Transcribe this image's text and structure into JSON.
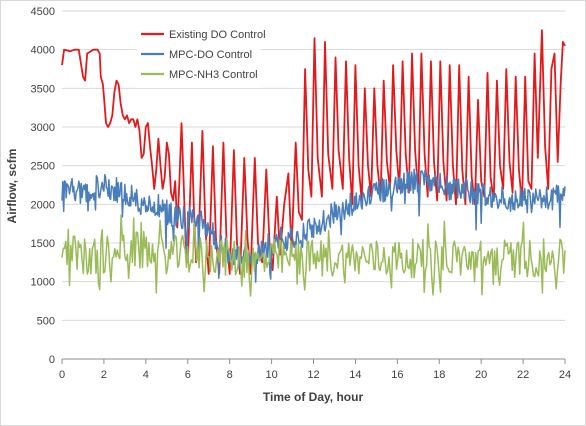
{
  "chart_data": {
    "type": "line",
    "title": "",
    "xlabel": "Time of Day, hour",
    "ylabel": "Airflow, scfm",
    "xlim": [
      0,
      24
    ],
    "ylim": [
      0,
      4500
    ],
    "x_ticks": [
      "0",
      "2",
      "4",
      "6",
      "8",
      "10",
      "12",
      "14",
      "16",
      "18",
      "20",
      "22",
      "24"
    ],
    "y_ticks": [
      "0",
      "500",
      "1000",
      "1500",
      "2000",
      "2500",
      "3000",
      "3500",
      "4000",
      "4500"
    ],
    "grid": "horizontal",
    "legend_position": "top-left",
    "series": [
      {
        "name": "Existing DO Control",
        "color": "#e31a1c",
        "points": [
          [
            0,
            3800
          ],
          [
            0.1,
            4000
          ],
          [
            0.4,
            3980
          ],
          [
            0.6,
            4000
          ],
          [
            0.8,
            4000
          ],
          [
            1.0,
            3650
          ],
          [
            1.1,
            3600
          ],
          [
            1.2,
            3950
          ],
          [
            1.5,
            4000
          ],
          [
            1.7,
            4000
          ],
          [
            1.8,
            3950
          ],
          [
            1.85,
            3650
          ],
          [
            1.95,
            3550
          ],
          [
            2.0,
            3400
          ],
          [
            2.1,
            3050
          ],
          [
            2.2,
            3000
          ],
          [
            2.3,
            3050
          ],
          [
            2.4,
            3150
          ],
          [
            2.5,
            3450
          ],
          [
            2.6,
            3600
          ],
          [
            2.7,
            3550
          ],
          [
            2.8,
            3300
          ],
          [
            2.9,
            3150
          ],
          [
            3.0,
            3100
          ],
          [
            3.1,
            3150
          ],
          [
            3.2,
            3050
          ],
          [
            3.3,
            3100
          ],
          [
            3.4,
            3100
          ],
          [
            3.5,
            3000
          ],
          [
            3.6,
            3100
          ],
          [
            3.7,
            2950
          ],
          [
            3.8,
            2600
          ],
          [
            3.9,
            2650
          ],
          [
            4.0,
            3000
          ],
          [
            4.1,
            3050
          ],
          [
            4.2,
            2750
          ],
          [
            4.3,
            2500
          ],
          [
            4.4,
            2200
          ],
          [
            4.5,
            2450
          ],
          [
            4.6,
            2850
          ],
          [
            4.7,
            2500
          ],
          [
            4.8,
            2200
          ],
          [
            4.9,
            2350
          ],
          [
            5.0,
            2800
          ],
          [
            5.1,
            2650
          ],
          [
            5.2,
            2150
          ],
          [
            5.3,
            2050
          ],
          [
            5.4,
            2300
          ],
          [
            5.5,
            1700
          ],
          [
            5.6,
            2300
          ],
          [
            5.7,
            3050
          ],
          [
            5.8,
            2300
          ],
          [
            5.9,
            1500
          ],
          [
            6.0,
            1250
          ],
          [
            6.1,
            2000
          ],
          [
            6.2,
            2800
          ],
          [
            6.3,
            1900
          ],
          [
            6.4,
            1250
          ],
          [
            6.5,
            1400
          ],
          [
            6.7,
            2950
          ],
          [
            6.85,
            1650
          ],
          [
            7.0,
            1100
          ],
          [
            7.2,
            2750
          ],
          [
            7.35,
            1550
          ],
          [
            7.5,
            1100
          ],
          [
            7.7,
            2800
          ],
          [
            7.85,
            1550
          ],
          [
            8.0,
            1100
          ],
          [
            8.2,
            2700
          ],
          [
            8.35,
            1500
          ],
          [
            8.5,
            1100
          ],
          [
            8.7,
            2600
          ],
          [
            8.85,
            1550
          ],
          [
            9.0,
            1100
          ],
          [
            9.2,
            2600
          ],
          [
            9.35,
            1500
          ],
          [
            9.55,
            1250
          ],
          [
            9.75,
            2450
          ],
          [
            9.9,
            1500
          ],
          [
            10.05,
            1150
          ],
          [
            10.25,
            2100
          ],
          [
            10.4,
            1350
          ],
          [
            10.6,
            2000
          ],
          [
            10.8,
            2400
          ],
          [
            10.95,
            1400
          ],
          [
            11.15,
            2800
          ],
          [
            11.3,
            1900
          ],
          [
            11.45,
            1800
          ],
          [
            11.6,
            3750
          ],
          [
            11.75,
            2450
          ],
          [
            11.9,
            2100
          ],
          [
            12.05,
            4150
          ],
          [
            12.2,
            2600
          ],
          [
            12.4,
            2100
          ],
          [
            12.55,
            4100
          ],
          [
            12.7,
            2650
          ],
          [
            12.9,
            2200
          ],
          [
            13.05,
            3900
          ],
          [
            13.2,
            2700
          ],
          [
            13.4,
            2200
          ],
          [
            13.55,
            3850
          ],
          [
            13.7,
            2600
          ],
          [
            13.85,
            2000
          ],
          [
            14.0,
            3800
          ],
          [
            14.15,
            2500
          ],
          [
            14.3,
            2050
          ],
          [
            14.45,
            3500
          ],
          [
            14.6,
            2500
          ],
          [
            14.75,
            2100
          ],
          [
            14.9,
            3500
          ],
          [
            15.05,
            2500
          ],
          [
            15.2,
            2100
          ],
          [
            15.35,
            3600
          ],
          [
            15.5,
            2550
          ],
          [
            15.65,
            2200
          ],
          [
            15.8,
            3800
          ],
          [
            15.95,
            2700
          ],
          [
            16.1,
            2200
          ],
          [
            16.25,
            3850
          ],
          [
            16.4,
            2650
          ],
          [
            16.55,
            2150
          ],
          [
            16.7,
            3950
          ],
          [
            16.85,
            2700
          ],
          [
            17.0,
            2150
          ],
          [
            17.15,
            3950
          ],
          [
            17.3,
            2650
          ],
          [
            17.45,
            2100
          ],
          [
            17.6,
            3850
          ],
          [
            17.75,
            2550
          ],
          [
            17.9,
            2050
          ],
          [
            18.05,
            3850
          ],
          [
            18.2,
            2550
          ],
          [
            18.35,
            2050
          ],
          [
            18.5,
            3800
          ],
          [
            18.65,
            2500
          ],
          [
            18.8,
            2000
          ],
          [
            18.95,
            3800
          ],
          [
            19.1,
            2450
          ],
          [
            19.25,
            2000
          ],
          [
            19.4,
            3650
          ],
          [
            19.55,
            2350
          ],
          [
            19.7,
            2000
          ],
          [
            19.85,
            3350
          ],
          [
            20.0,
            2300
          ],
          [
            20.15,
            2100
          ],
          [
            20.3,
            3700
          ],
          [
            20.45,
            2350
          ],
          [
            20.6,
            2050
          ],
          [
            20.75,
            3600
          ],
          [
            20.9,
            2500
          ],
          [
            21.05,
            2200
          ],
          [
            21.2,
            3750
          ],
          [
            21.35,
            2550
          ],
          [
            21.5,
            2150
          ],
          [
            21.65,
            3650
          ],
          [
            21.8,
            2450
          ],
          [
            21.95,
            2000
          ],
          [
            22.1,
            3650
          ],
          [
            22.25,
            2300
          ],
          [
            22.4,
            2200
          ],
          [
            22.55,
            3950
          ],
          [
            22.7,
            2600
          ],
          [
            22.9,
            4250
          ],
          [
            23.05,
            2750
          ],
          [
            23.2,
            2200
          ],
          [
            23.35,
            3750
          ],
          [
            23.5,
            3950
          ],
          [
            23.65,
            2550
          ],
          [
            23.8,
            3600
          ],
          [
            23.9,
            4100
          ],
          [
            24.0,
            4050
          ]
        ]
      },
      {
        "name": "MPC-DO Control",
        "color": "#4a7ebb",
        "points": [
          [
            0,
            2200
          ],
          [
            0.5,
            2200
          ],
          [
            1.0,
            2150
          ],
          [
            1.5,
            2200
          ],
          [
            2.0,
            2250
          ],
          [
            2.5,
            2200
          ],
          [
            3.0,
            2150
          ],
          [
            3.5,
            2050
          ],
          [
            4.0,
            2000
          ],
          [
            4.5,
            2000
          ],
          [
            5.0,
            1900
          ],
          [
            5.5,
            1850
          ],
          [
            6.0,
            1800
          ],
          [
            6.5,
            1800
          ],
          [
            7.0,
            1700
          ],
          [
            7.5,
            1500
          ],
          [
            8.0,
            1350
          ],
          [
            8.5,
            1300
          ],
          [
            9.0,
            1300
          ],
          [
            9.5,
            1400
          ],
          [
            10.0,
            1500
          ],
          [
            10.5,
            1550
          ],
          [
            11.0,
            1550
          ],
          [
            11.5,
            1600
          ],
          [
            12.0,
            1700
          ],
          [
            12.5,
            1800
          ],
          [
            13.0,
            1900
          ],
          [
            13.5,
            1950
          ],
          [
            14.0,
            2050
          ],
          [
            14.5,
            2100
          ],
          [
            15.0,
            2150
          ],
          [
            15.5,
            2200
          ],
          [
            16.0,
            2250
          ],
          [
            16.5,
            2300
          ],
          [
            17.0,
            2300
          ],
          [
            17.5,
            2300
          ],
          [
            18.0,
            2250
          ],
          [
            18.5,
            2200
          ],
          [
            19.0,
            2200
          ],
          [
            19.5,
            2150
          ],
          [
            20.0,
            2150
          ],
          [
            20.5,
            2100
          ],
          [
            21.0,
            2100
          ],
          [
            21.5,
            2050
          ],
          [
            22.0,
            2050
          ],
          [
            22.5,
            2050
          ],
          [
            23.0,
            2050
          ],
          [
            23.5,
            2100
          ],
          [
            24.0,
            2100
          ]
        ]
      },
      {
        "name": "MPC-NH3 Control",
        "color": "#9bbb59",
        "points": [
          [
            0,
            1400
          ],
          [
            0.5,
            1350
          ],
          [
            1.0,
            1300
          ],
          [
            1.5,
            1300
          ],
          [
            2.0,
            1350
          ],
          [
            2.5,
            1450
          ],
          [
            3.0,
            1450
          ],
          [
            3.5,
            1400
          ],
          [
            4.0,
            1400
          ],
          [
            4.5,
            1350
          ],
          [
            5.0,
            1350
          ],
          [
            5.5,
            1350
          ],
          [
            6.0,
            1350
          ],
          [
            6.5,
            1350
          ],
          [
            7.0,
            1350
          ],
          [
            7.5,
            1350
          ],
          [
            8.0,
            1300
          ],
          [
            8.5,
            1300
          ],
          [
            9.0,
            1250
          ],
          [
            9.5,
            1250
          ],
          [
            10.0,
            1300
          ],
          [
            10.5,
            1300
          ],
          [
            11.0,
            1300
          ],
          [
            11.5,
            1300
          ],
          [
            12.0,
            1300
          ],
          [
            12.5,
            1300
          ],
          [
            13.0,
            1300
          ],
          [
            13.5,
            1300
          ],
          [
            14.0,
            1300
          ],
          [
            14.5,
            1300
          ],
          [
            15.0,
            1300
          ],
          [
            15.5,
            1300
          ],
          [
            16.0,
            1300
          ],
          [
            16.5,
            1300
          ],
          [
            17.0,
            1300
          ],
          [
            17.5,
            1300
          ],
          [
            18.0,
            1300
          ],
          [
            18.5,
            1300
          ],
          [
            19.0,
            1300
          ],
          [
            19.5,
            1300
          ],
          [
            20.0,
            1300
          ],
          [
            20.5,
            1300
          ],
          [
            21.0,
            1300
          ],
          [
            21.5,
            1300
          ],
          [
            22.0,
            1300
          ],
          [
            22.5,
            1300
          ],
          [
            23.0,
            1300
          ],
          [
            23.5,
            1300
          ],
          [
            24.0,
            1300
          ]
        ]
      }
    ]
  }
}
